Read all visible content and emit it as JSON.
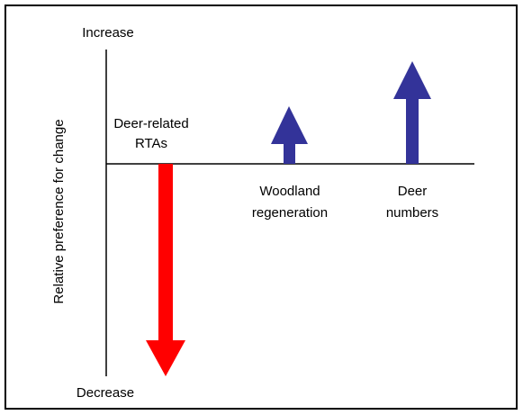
{
  "axis": {
    "top_label": "Increase",
    "bottom_label": "Decrease",
    "y_label": "Relative preference for change"
  },
  "items": [
    {
      "label_lines": [
        "Deer-related",
        "RTAs"
      ]
    },
    {
      "label_lines": [
        "Woodland",
        "regeneration"
      ]
    },
    {
      "label_lines": [
        "Deer",
        "numbers"
      ]
    }
  ]
}
